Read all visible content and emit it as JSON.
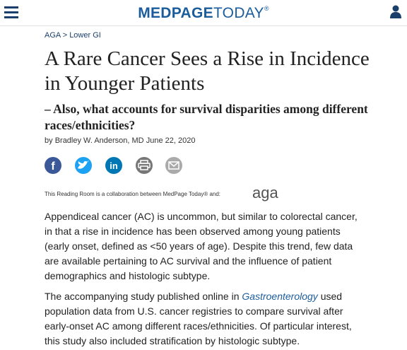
{
  "header": {
    "logo_bold": "MEDPAGE",
    "logo_light": "TODAY",
    "logo_mark": "®"
  },
  "breadcrumb": {
    "items": [
      "AGA",
      "Lower GI"
    ],
    "separator": ">"
  },
  "article": {
    "title": "A Rare Cancer Sees a Rise in Incidence in Younger Patients",
    "subtitle": "– Also, what accounts for survival disparities among different races/ethnicities?",
    "byline": {
      "prefix": "by",
      "author": "Bradley W. Anderson, MD",
      "date": "June 22, 2020"
    },
    "share_glyphs": {
      "facebook": "f",
      "linkedin": "in"
    },
    "partner": {
      "text": "This Reading Room is a collaboration between MedPage Today® and:",
      "logo": "aga"
    },
    "paragraphs": [
      [
        "Appendiceal cancer (AC) is uncommon, but similar to colorectal cancer, in that a rise in incidence has been observed among young patients (early onset, defined as <50 years of age). Despite this trend, few data are available pertaining to AC survival and the influence of patient demographics and histologic subtype."
      ],
      [
        "The accompanying study published online in ",
        "Gastroenterology",
        " used population data from U.S. cancer registries to compare survival after early-onset AC among different races/ethnicities. Of particular interest, this study also included stratification by histologic subtype."
      ]
    ]
  }
}
